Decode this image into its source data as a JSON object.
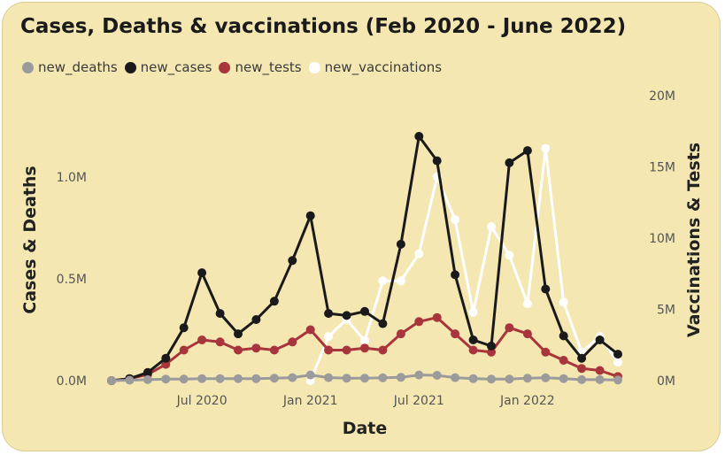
{
  "colors": {
    "card_bg": "#f4e7b2",
    "new_deaths": "#9b9b9b",
    "new_cases": "#1a1a1a",
    "new_tests": "#a8343c",
    "new_vaccinations": "#ffffff"
  },
  "chart_data": {
    "type": "line",
    "title": "Cases, Deaths & vaccinations (Feb 2020 - June 2022)",
    "xlabel": "Date",
    "ylabel_left": "Cases & Deaths",
    "ylabel_right": "Vaccinations & Tests",
    "x": [
      "2020-02",
      "2020-03",
      "2020-04",
      "2020-05",
      "2020-06",
      "2020-07",
      "2020-08",
      "2020-09",
      "2020-10",
      "2020-11",
      "2020-12",
      "2021-01",
      "2021-02",
      "2021-03",
      "2021-04",
      "2021-05",
      "2021-06",
      "2021-07",
      "2021-08",
      "2021-09",
      "2021-10",
      "2021-11",
      "2021-12",
      "2022-01",
      "2022-02",
      "2022-03",
      "2022-04",
      "2022-05",
      "2022-06"
    ],
    "x_ticks": [
      "Jul 2020",
      "Jan 2021",
      "Jul 2021",
      "Jan 2022"
    ],
    "x_tick_positions": [
      "2020-07",
      "2021-01",
      "2021-07",
      "2022-01"
    ],
    "left_axis": {
      "ylim": [
        0,
        1400000
      ],
      "ticks": [
        0,
        500000,
        1000000
      ],
      "tick_labels": [
        "0.0M",
        "0.5M",
        "1.0M"
      ]
    },
    "right_axis": {
      "ylim": [
        0,
        20000000
      ],
      "ticks": [
        0,
        5000000,
        10000000,
        15000000,
        20000000
      ],
      "tick_labels": [
        "0M",
        "5M",
        "10M",
        "15M",
        "20M"
      ]
    },
    "legend_position": "top-left",
    "grid": false,
    "series": [
      {
        "name": "new_deaths",
        "axis": "left",
        "values": [
          0,
          2000,
          5000,
          8000,
          8000,
          10000,
          10000,
          10000,
          10000,
          12000,
          15000,
          28000,
          15000,
          12000,
          12000,
          14000,
          16000,
          28000,
          26000,
          15000,
          10000,
          8000,
          8000,
          12000,
          14000,
          10000,
          5000,
          5000,
          3000
        ]
      },
      {
        "name": "new_cases",
        "axis": "left",
        "values": [
          0,
          10000,
          40000,
          110000,
          260000,
          530000,
          330000,
          230000,
          300000,
          390000,
          590000,
          810000,
          330000,
          320000,
          340000,
          280000,
          670000,
          1200000,
          1080000,
          520000,
          200000,
          170000,
          1070000,
          1130000,
          450000,
          220000,
          110000,
          200000,
          130000
        ]
      },
      {
        "name": "new_tests",
        "axis": "left",
        "values": [
          0,
          10000,
          30000,
          80000,
          150000,
          200000,
          190000,
          150000,
          160000,
          150000,
          190000,
          250000,
          150000,
          150000,
          160000,
          150000,
          230000,
          290000,
          310000,
          230000,
          150000,
          140000,
          260000,
          230000,
          140000,
          100000,
          60000,
          50000,
          20000
        ]
      },
      {
        "name": "new_vaccinations",
        "axis": "right",
        "values": [
          null,
          null,
          null,
          null,
          null,
          null,
          null,
          null,
          null,
          null,
          null,
          0,
          3100000,
          4300000,
          2800000,
          7000000,
          7000000,
          8900000,
          14300000,
          11300000,
          4800000,
          10800000,
          8800000,
          5400000,
          16300000,
          5500000,
          2000000,
          3100000,
          1300000
        ]
      }
    ]
  }
}
